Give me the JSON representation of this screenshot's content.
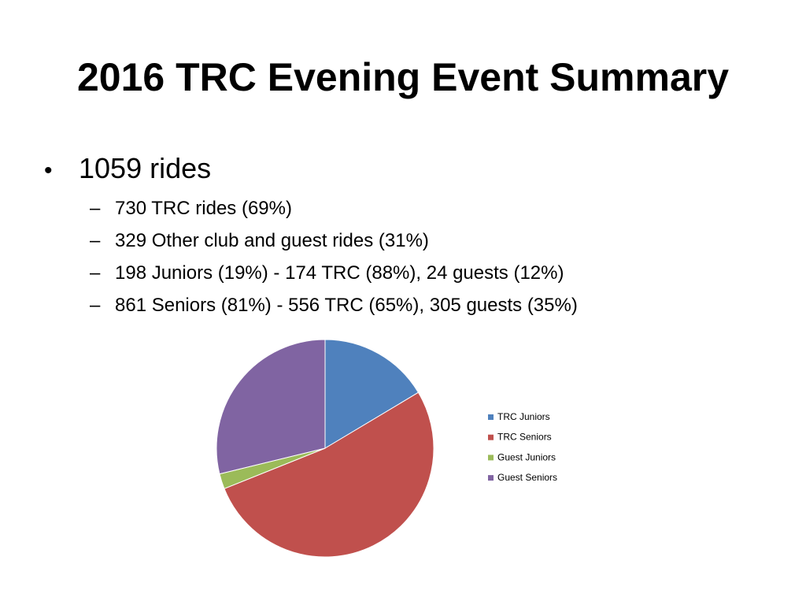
{
  "slide": {
    "title": "2016 TRC Evening Event Summary",
    "bullet_marker": "•",
    "sub_marker": "–",
    "main_bullet": "1059 rides",
    "sub_bullets": [
      "730 TRC rides (69%)",
      "329 Other club and guest rides (31%)",
      "198 Juniors (19%) - 174 TRC (88%), 24 guests (12%)",
      "861 Seniors (81%) - 556 TRC (65%), 305 guests (35%)"
    ]
  },
  "chart_data": {
    "type": "pie",
    "title": "",
    "legend_position": "right",
    "slices": [
      {
        "label": "TRC Juniors",
        "value": 174,
        "color": "#4F81BD"
      },
      {
        "label": "TRC Seniors",
        "value": 556,
        "color": "#C0504D"
      },
      {
        "label": "Guest Juniors",
        "value": 24,
        "color": "#9BBB59"
      },
      {
        "label": "Guest Seniors",
        "value": 305,
        "color": "#8064A2"
      }
    ]
  }
}
